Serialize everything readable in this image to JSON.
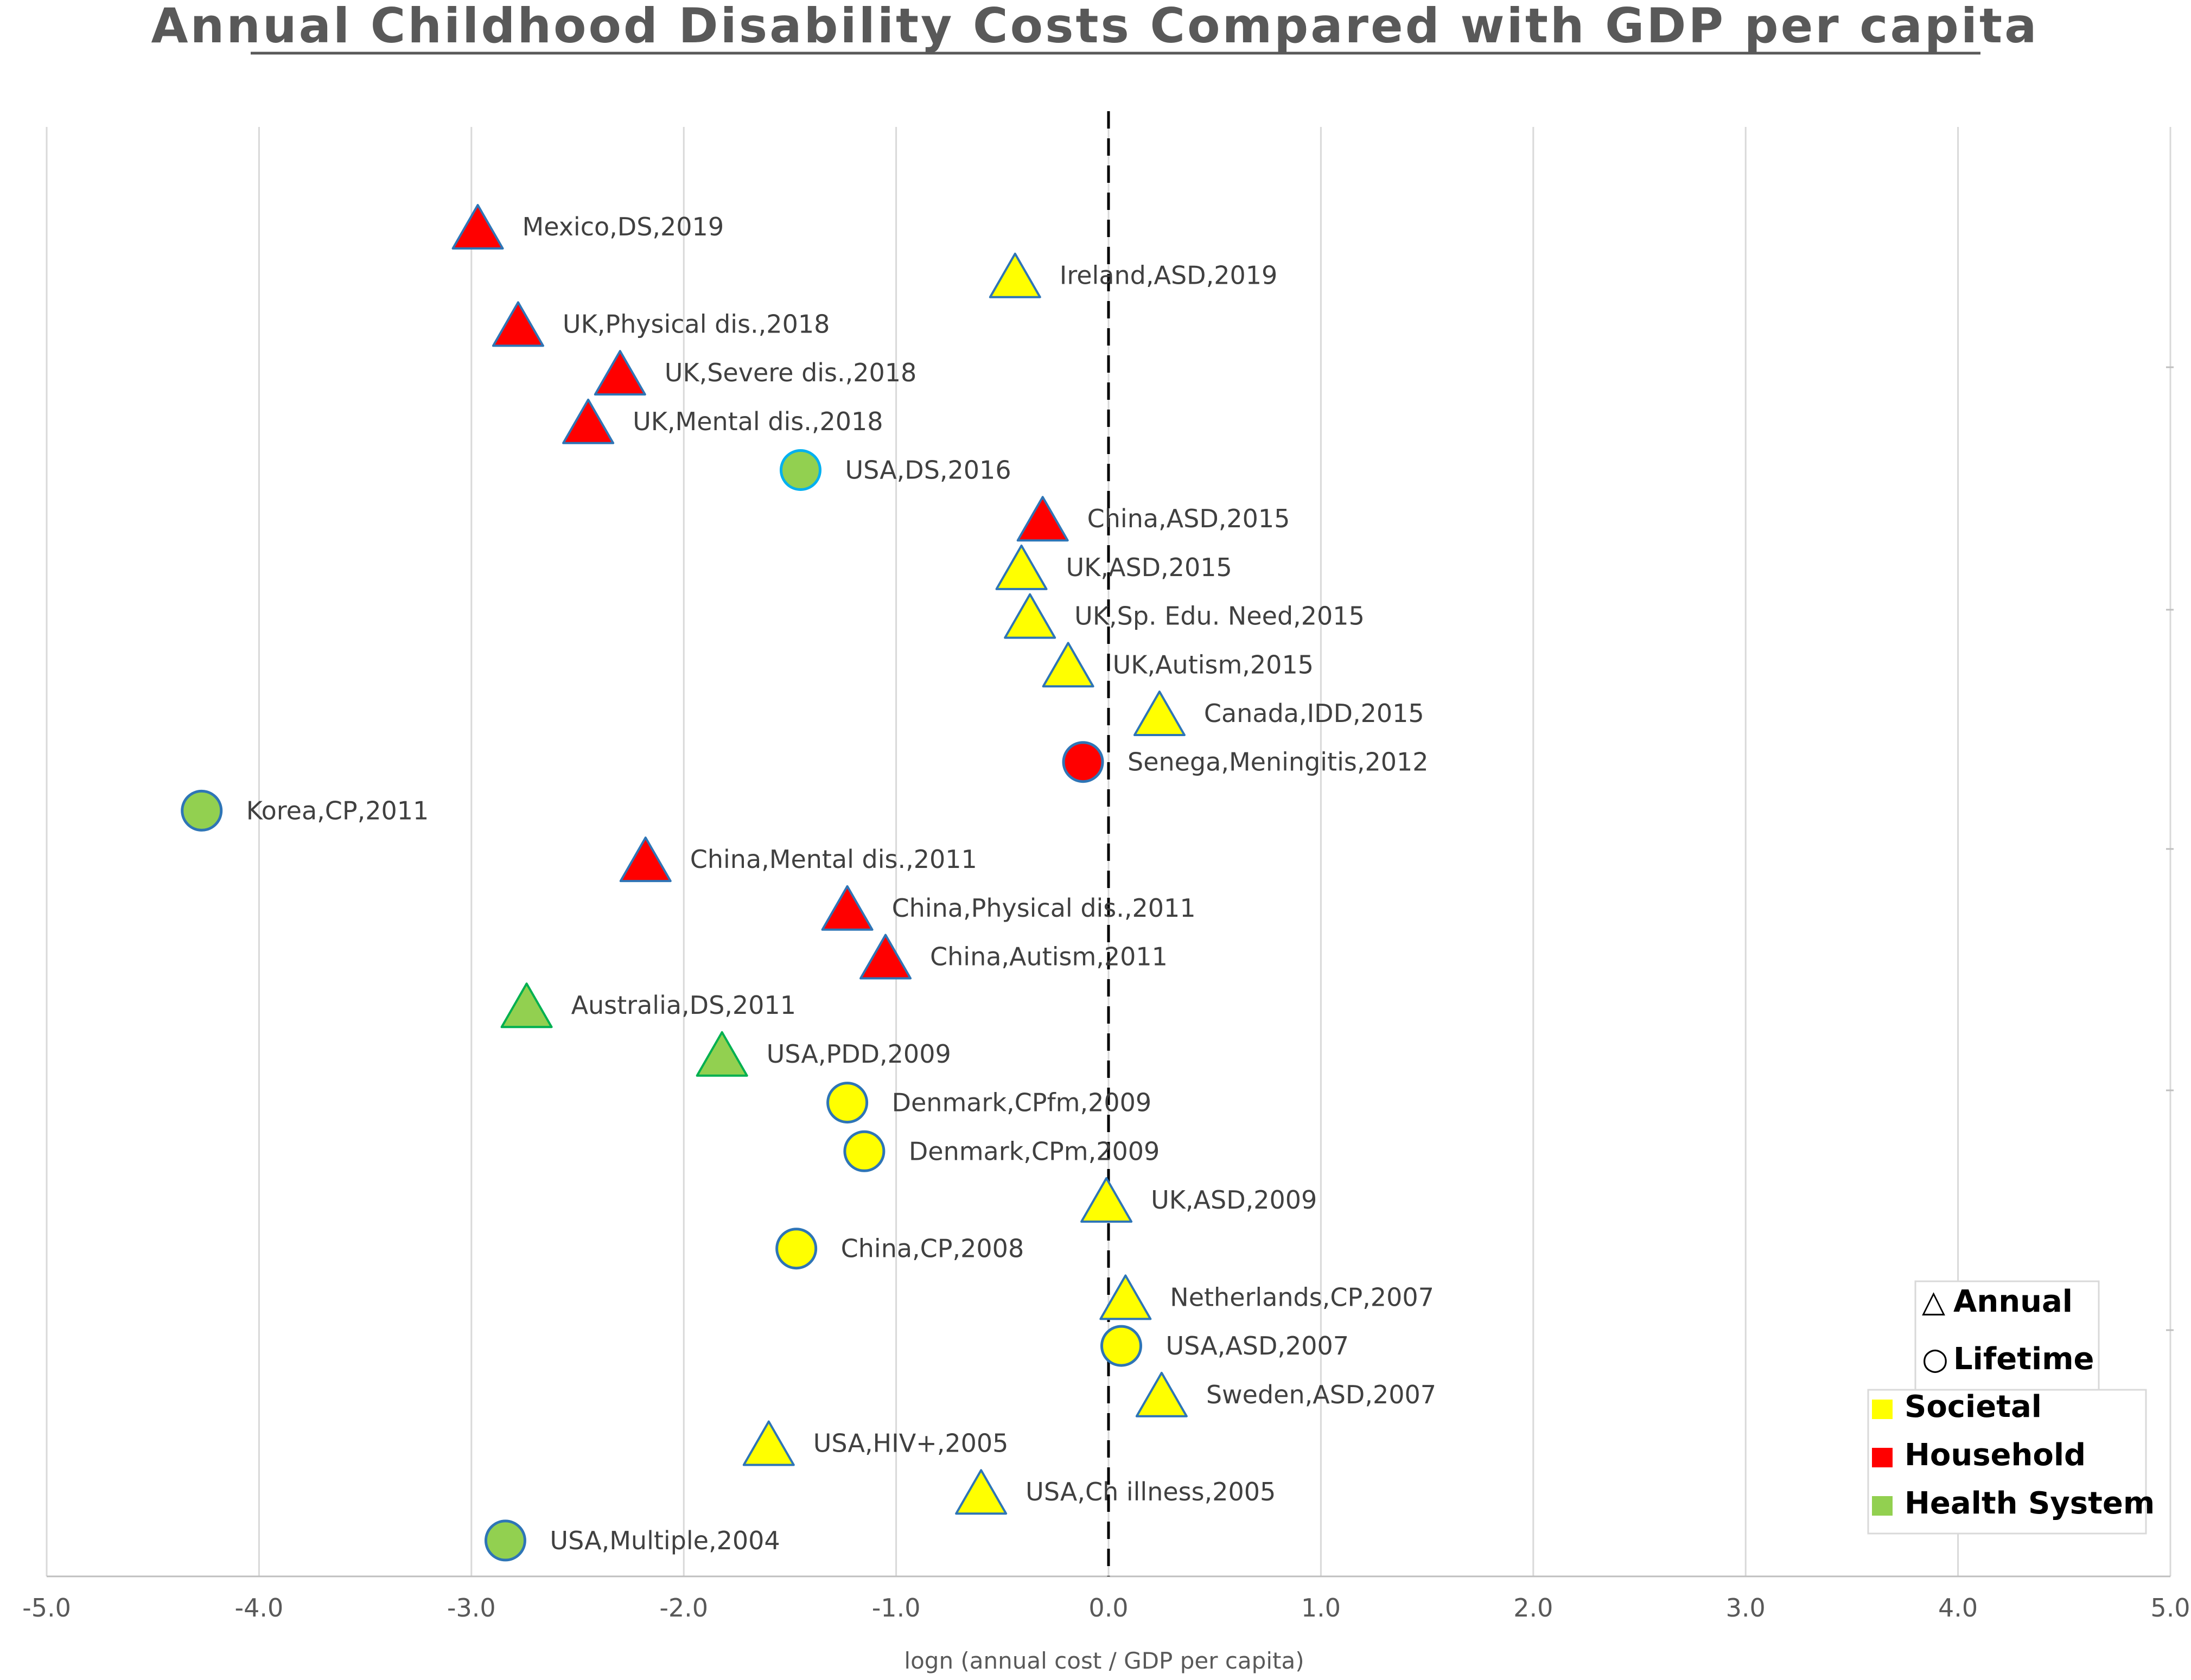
{
  "chart_data": {
    "type": "scatter",
    "title": "Annual Childhood Disability Costs Compared with GDP per capita",
    "xlabel": "logn (annual cost / GDP per capita)",
    "ylabel": "",
    "xlim": [
      -5.0,
      5.0
    ],
    "xticks": [
      -5.0,
      -4.0,
      -3.0,
      -2.0,
      -1.0,
      0.0,
      1.0,
      2.0,
      3.0,
      4.0,
      5.0
    ],
    "tick_labels": [
      "-5.0",
      "-4.0",
      "-3.0",
      "-2.0",
      "-1.0",
      "0.0",
      "1.0",
      "2.0",
      "3.0",
      "4.0",
      "5.0"
    ],
    "reference_line_x": 0.0,
    "grid": true,
    "colors": {
      "Societal": "#ffff00",
      "Household": "#ff0000",
      "Health System": "#92d050"
    },
    "points": [
      {
        "label": "Mexico,DS,2019",
        "x": -2.97,
        "shape": "triangle",
        "category": "Household"
      },
      {
        "label": "Ireland,ASD,2019",
        "x": -0.44,
        "shape": "triangle",
        "category": "Societal"
      },
      {
        "label": "UK,Physical dis.,2018",
        "x": -2.78,
        "shape": "triangle",
        "category": "Household"
      },
      {
        "label": "UK,Severe dis.,2018",
        "x": -2.3,
        "shape": "triangle",
        "category": "Household"
      },
      {
        "label": "UK,Mental dis.,2018",
        "x": -2.45,
        "shape": "triangle",
        "category": "Household"
      },
      {
        "label": "USA,DS,2016",
        "x": -1.45,
        "shape": "circle",
        "category": "Health System"
      },
      {
        "label": "China,ASD,2015",
        "x": -0.31,
        "shape": "triangle",
        "category": "Household"
      },
      {
        "label": "UK,ASD,2015",
        "x": -0.41,
        "shape": "triangle",
        "category": "Societal"
      },
      {
        "label": "UK,Sp. Edu. Need,2015",
        "x": -0.37,
        "shape": "triangle",
        "category": "Societal"
      },
      {
        "label": "UK,Autism,2015",
        "x": -0.19,
        "shape": "triangle",
        "category": "Societal"
      },
      {
        "label": "Canada,IDD,2015",
        "x": 0.24,
        "shape": "triangle",
        "category": "Societal"
      },
      {
        "label": "Senega,Meningitis,2012",
        "x": -0.12,
        "shape": "circle",
        "category": "Household"
      },
      {
        "label": "Korea,CP,2011",
        "x": -4.27,
        "shape": "circle",
        "category": "Health System"
      },
      {
        "label": "China,Mental dis.,2011",
        "x": -2.18,
        "shape": "triangle",
        "category": "Household"
      },
      {
        "label": "China,Physical dis.,2011",
        "x": -1.23,
        "shape": "triangle",
        "category": "Household"
      },
      {
        "label": "China,Autism,2011",
        "x": -1.05,
        "shape": "triangle",
        "category": "Household"
      },
      {
        "label": "Australia,DS,2011",
        "x": -2.74,
        "shape": "triangle",
        "category": "Health System"
      },
      {
        "label": "USA,PDD,2009",
        "x": -1.82,
        "shape": "triangle",
        "category": "Health System"
      },
      {
        "label": "Denmark,CPfm,2009",
        "x": -1.23,
        "shape": "circle",
        "category": "Societal"
      },
      {
        "label": "Denmark,CPm,2009",
        "x": -1.15,
        "shape": "circle",
        "category": "Societal"
      },
      {
        "label": "UK,ASD,2009",
        "x": -0.01,
        "shape": "triangle",
        "category": "Societal"
      },
      {
        "label": "China,CP,2008",
        "x": -1.47,
        "shape": "circle",
        "category": "Societal"
      },
      {
        "label": "Netherlands,CP,2007",
        "x": 0.08,
        "shape": "triangle",
        "category": "Societal"
      },
      {
        "label": "USA,ASD,2007",
        "x": 0.06,
        "shape": "circle",
        "category": "Societal"
      },
      {
        "label": "Sweden,ASD,2007",
        "x": 0.25,
        "shape": "triangle",
        "category": "Societal"
      },
      {
        "label": "USA,HIV+,2005",
        "x": -1.6,
        "shape": "triangle",
        "category": "Societal"
      },
      {
        "label": "USA,Ch illness,2005",
        "x": -0.6,
        "shape": "triangle",
        "category": "Societal"
      },
      {
        "label": "USA,Multiple,2004",
        "x": -2.84,
        "shape": "circle",
        "category": "Health System"
      }
    ],
    "legend": {
      "shapes": [
        {
          "label": "Annual",
          "symbol": "△"
        },
        {
          "label": "Lifetime",
          "symbol": "○"
        }
      ],
      "categories": [
        "Societal",
        "Household",
        "Health System"
      ],
      "position": "bottom-right"
    }
  }
}
